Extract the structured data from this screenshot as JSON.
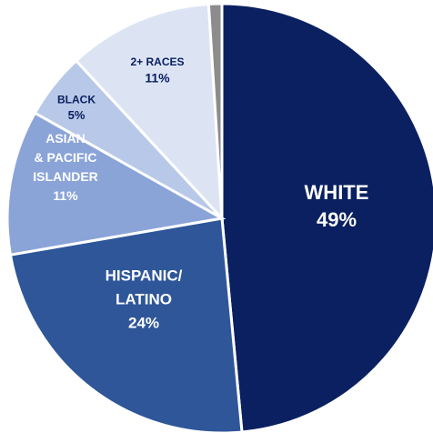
{
  "chart_data": {
    "type": "pie",
    "title": "",
    "slices": [
      {
        "name": "White",
        "value": 49,
        "label_lines": [
          "WHITE"
        ],
        "value_label": "49%",
        "color": "#0a2060",
        "label_color": "#ffffff"
      },
      {
        "name": "Hispanic/Latino",
        "value": 24,
        "label_lines": [
          "HISPANIC/",
          "LATINO"
        ],
        "value_label": "24%",
        "color": "#2e5699",
        "label_color": "#ffffff"
      },
      {
        "name": "Asian & Pacific Islander",
        "value": 11,
        "label_lines": [
          "ASIAN",
          "& PACIFIC",
          "ISLANDER"
        ],
        "value_label": "11%",
        "color": "#8aa4d8",
        "label_color": "#ffffff"
      },
      {
        "name": "Black",
        "value": 5,
        "label_lines": [
          "BLACK"
        ],
        "value_label": "5%",
        "color": "#b8c8e8",
        "label_color": "#0a2060"
      },
      {
        "name": "2+ Races",
        "value": 11,
        "label_lines": [
          "2+ RACES"
        ],
        "value_label": "11%",
        "color": "#dce4f4",
        "label_color": "#0a2060"
      },
      {
        "name": "Other",
        "value": 1,
        "label_lines": [],
        "value_label": "",
        "color": "#8c8c8c",
        "label_color": "#0a2060"
      }
    ]
  }
}
